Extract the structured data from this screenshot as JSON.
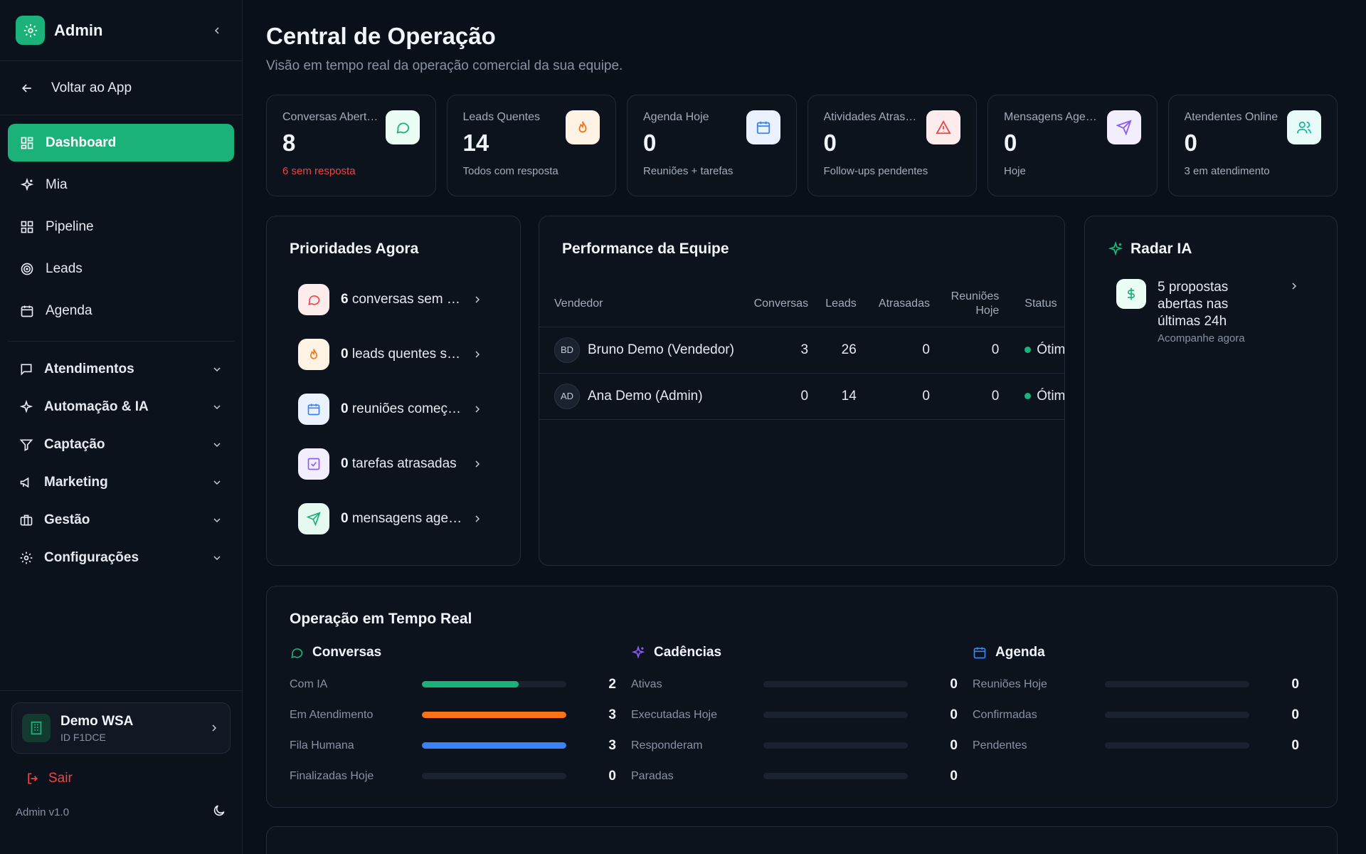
{
  "sidebar": {
    "title": "Admin",
    "back_label": "Voltar ao App",
    "nav": [
      {
        "label": "Dashboard",
        "icon": "dashboard-icon"
      },
      {
        "label": "Mia",
        "icon": "sparkles-icon"
      },
      {
        "label": "Pipeline",
        "icon": "grid-icon"
      },
      {
        "label": "Leads",
        "icon": "target-icon"
      },
      {
        "label": "Agenda",
        "icon": "calendar-icon"
      }
    ],
    "groups": [
      {
        "label": "Atendimentos",
        "icon": "message-icon"
      },
      {
        "label": "Automação & IA",
        "icon": "sparkles-icon"
      },
      {
        "label": "Captação",
        "icon": "filter-icon"
      },
      {
        "label": "Marketing",
        "icon": "megaphone-icon"
      },
      {
        "label": "Gestão",
        "icon": "briefcase-icon"
      },
      {
        "label": "Configurações",
        "icon": "gear-icon"
      }
    ],
    "org": {
      "name": "Demo WSA",
      "id": "ID F1DCE"
    },
    "logout_label": "Sair",
    "version": "Admin v1.0"
  },
  "header": {
    "title": "Central de Operação",
    "subtitle": "Visão em tempo real da operação comercial da sua equipe."
  },
  "kpis": [
    {
      "label": "Conversas Abertas",
      "value": "8",
      "sub": "6 sem resposta",
      "icon": "chat-icon",
      "accent": "#1bb27a"
    },
    {
      "label": "Leads Quentes",
      "value": "14",
      "sub": "Todos com resposta",
      "icon": "flame-icon",
      "accent": "#f97316"
    },
    {
      "label": "Agenda Hoje",
      "value": "0",
      "sub": "Reuniões + tarefas",
      "icon": "calendar-icon",
      "accent": "#3b82f6"
    },
    {
      "label": "Atividades Atrasadas",
      "value": "0",
      "sub": "Follow-ups pendentes",
      "icon": "alert-icon",
      "accent": "#ef4444"
    },
    {
      "label": "Mensagens Agendadas",
      "value": "0",
      "sub": "Hoje",
      "icon": "send-icon",
      "accent": "#8b5cf6"
    },
    {
      "label": "Atendentes Online",
      "value": "0",
      "sub": "3 em atendimento",
      "icon": "users-icon",
      "accent": "#14b8a6"
    }
  ],
  "priorities": {
    "title": "Prioridades Agora",
    "items": [
      {
        "count": "6",
        "text": "conversas sem resposta",
        "icon": "chat-icon"
      },
      {
        "count": "0",
        "text": "leads quentes sem contato",
        "icon": "flame-icon"
      },
      {
        "count": "0",
        "text": "reuniões começando",
        "icon": "calendar-icon"
      },
      {
        "count": "0",
        "text": "tarefas atrasadas",
        "icon": "checkbox-icon"
      },
      {
        "count": "0",
        "text": "mensagens agendadas",
        "icon": "send-icon"
      }
    ]
  },
  "performance": {
    "title": "Performance da Equipe",
    "columns": [
      "Vendedor",
      "Conversas",
      "Leads",
      "Atrasadas",
      "Reuniões Hoje",
      "Status"
    ],
    "rows": [
      {
        "initials": "BD",
        "name": "Bruno Demo (Vendedor)",
        "conversas": "3",
        "leads": "26",
        "atrasadas": "0",
        "reunioes": "0",
        "status": "Ótimo"
      },
      {
        "initials": "AD",
        "name": "Ana Demo (Admin)",
        "conversas": "0",
        "leads": "14",
        "atrasadas": "0",
        "reunioes": "0",
        "status": "Ótimo"
      }
    ]
  },
  "radar": {
    "title": "Radar IA",
    "item": {
      "text": "5 propostas abertas nas últimas 24h",
      "sub": "Acompanhe agora",
      "icon": "dollar-icon"
    }
  },
  "realtime": {
    "title": "Operação em Tempo Real",
    "columns": [
      {
        "title": "Conversas",
        "icon": "chat-icon",
        "rows": [
          {
            "label": "Com IA",
            "value": "2",
            "fill": 0.67,
            "color": "#1bb27a"
          },
          {
            "label": "Em Atendimento",
            "value": "3",
            "fill": 1.0,
            "color": "#f97316"
          },
          {
            "label": "Fila Humana",
            "value": "3",
            "fill": 1.0,
            "color": "#3b82f6"
          },
          {
            "label": "Finalizadas Hoje",
            "value": "0",
            "fill": 0,
            "color": "#1bb27a"
          }
        ]
      },
      {
        "title": "Cadências",
        "icon": "sparkles-icon",
        "rows": [
          {
            "label": "Ativas",
            "value": "0",
            "fill": 0,
            "color": "#8b5cf6"
          },
          {
            "label": "Executadas Hoje",
            "value": "0",
            "fill": 0,
            "color": "#8b5cf6"
          },
          {
            "label": "Responderam",
            "value": "0",
            "fill": 0,
            "color": "#8b5cf6"
          },
          {
            "label": "Paradas",
            "value": "0",
            "fill": 0,
            "color": "#8b5cf6"
          }
        ]
      },
      {
        "title": "Agenda",
        "icon": "calendar-icon",
        "rows": [
          {
            "label": "Reuniões Hoje",
            "value": "0",
            "fill": 0,
            "color": "#3b82f6"
          },
          {
            "label": "Confirmadas",
            "value": "0",
            "fill": 0,
            "color": "#3b82f6"
          },
          {
            "label": "Pendentes",
            "value": "0",
            "fill": 0,
            "color": "#3b82f6"
          }
        ]
      }
    ]
  }
}
